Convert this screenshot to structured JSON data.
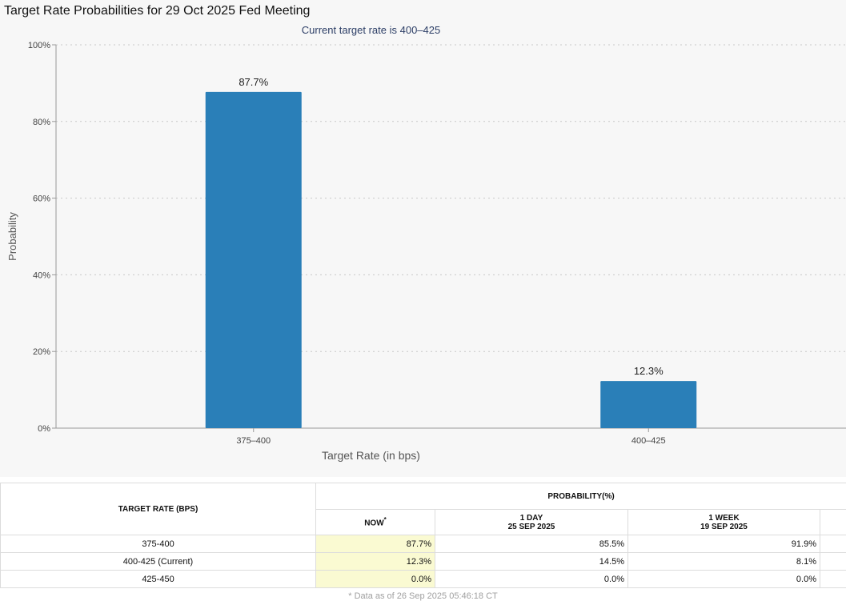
{
  "page": {
    "title": "Target Rate Probabilities for 29 Oct 2025 Fed Meeting"
  },
  "chart_data": {
    "type": "bar",
    "title": "Target Rate Probabilities for 29 Oct 2025 Fed Meeting",
    "subtitle": "Current target rate is 400–425",
    "xlabel": "Target Rate (in bps)",
    "ylabel": "Probability",
    "categories": [
      "375–400",
      "400–425"
    ],
    "values": [
      87.7,
      12.3
    ],
    "data_labels": [
      "87.7%",
      "12.3%"
    ],
    "ylim": [
      0,
      100
    ],
    "yticks": [
      0,
      20,
      40,
      60,
      80,
      100
    ],
    "ytick_labels": [
      "0%",
      "20%",
      "40%",
      "60%",
      "80%",
      "100%"
    ],
    "grid": true,
    "legend": "none",
    "bar_color": "#2a7fb8"
  },
  "table": {
    "col_target": "TARGET RATE (BPS)",
    "col_probability": "PROBABILITY(%)",
    "col_now": "NOW",
    "col_now_mark": "*",
    "col_day_line1": "1 DAY",
    "col_day_line2": "25 SEP 2025",
    "col_week_line1": "1 WEEK",
    "col_week_line2": "19 SEP 2025",
    "rows": [
      {
        "rate": "375-400",
        "now": "87.7%",
        "day": "85.5%",
        "week": "91.9%"
      },
      {
        "rate": "400-425 (Current)",
        "now": "12.3%",
        "day": "14.5%",
        "week": "8.1%"
      },
      {
        "rate": "425-450",
        "now": "0.0%",
        "day": "0.0%",
        "week": "0.0%"
      }
    ],
    "footnote": "* Data as of 26 Sep 2025 05:46:18 CT"
  },
  "colors": {
    "bar": "#2a7fb8",
    "now_highlight": "#fafad2",
    "subtitle": "#2c3e66"
  }
}
